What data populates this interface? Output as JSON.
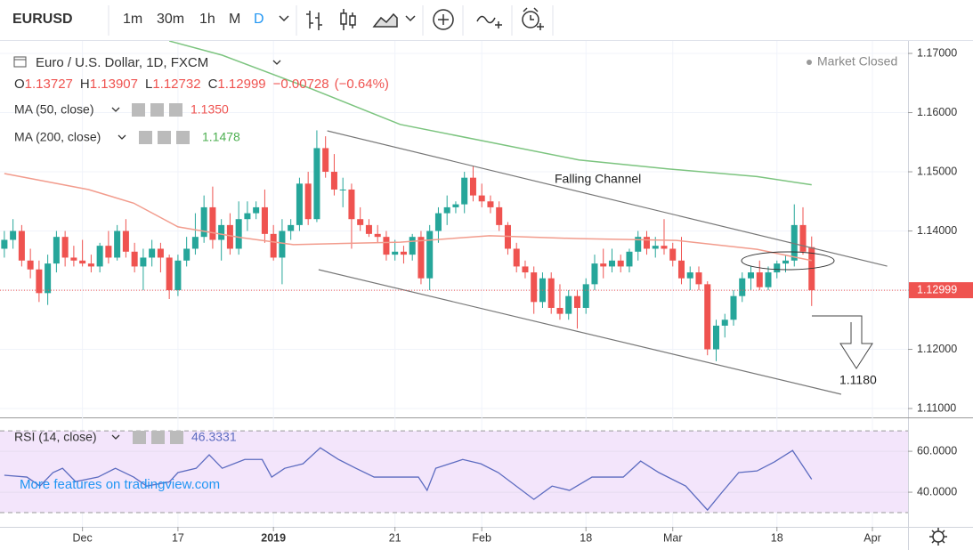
{
  "header": {
    "symbol": "EURUSD",
    "intervals": [
      "1m",
      "30m",
      "1h",
      "M",
      "D"
    ]
  },
  "legend": {
    "title": "Euro / U.S. Dollar, 1D, FXCM",
    "status": "Market Closed",
    "ohlc_labels": [
      "O",
      "H",
      "L",
      "C"
    ],
    "change": "−0.00728",
    "change_pct": "(−0.64%)"
  },
  "watermark": "More features on tradingview.com",
  "chart_data": [
    {
      "type": "candlestick",
      "open": [
        1.137,
        1.1385,
        1.14,
        1.135,
        1.1335,
        1.1295,
        1.1345,
        1.139,
        1.1355,
        1.135,
        1.1345,
        1.134,
        1.1375,
        1.1355,
        1.14,
        1.1365,
        1.134,
        1.1355,
        1.137,
        1.1355,
        1.13,
        1.135,
        1.137,
        1.139,
        1.144,
        1.1385,
        1.141,
        1.137,
        1.142,
        1.143,
        1.144,
        1.1395,
        1.1355,
        1.14,
        1.141,
        1.148,
        1.142,
        1.154,
        1.15,
        1.147,
        1.147,
        1.142,
        1.141,
        1.1395,
        1.139,
        1.136,
        1.1365,
        1.136,
        1.139,
        1.132,
        1.14,
        1.143,
        1.144,
        1.1445,
        1.149,
        1.146,
        1.145,
        1.144,
        1.141,
        1.137,
        1.134,
        1.133,
        1.128,
        1.132,
        1.127,
        1.126,
        1.129,
        1.127,
        1.131,
        1.1345,
        1.134,
        1.135,
        1.134,
        1.1365,
        1.139,
        1.137,
        1.1375,
        1.137,
        1.135,
        1.132,
        1.133,
        1.131,
        1.12,
        1.124,
        1.125,
        1.129,
        1.132,
        1.133,
        1.1305,
        1.133,
        1.1345,
        1.135,
        1.141,
        1.13727
      ],
      "high": [
        1.14,
        1.142,
        1.141,
        1.137,
        1.135,
        1.136,
        1.14,
        1.14,
        1.1375,
        1.1385,
        1.136,
        1.138,
        1.14,
        1.141,
        1.142,
        1.138,
        1.137,
        1.1385,
        1.138,
        1.136,
        1.136,
        1.139,
        1.143,
        1.146,
        1.1475,
        1.142,
        1.143,
        1.145,
        1.145,
        1.145,
        1.147,
        1.141,
        1.142,
        1.142,
        1.149,
        1.15,
        1.157,
        1.156,
        1.153,
        1.149,
        1.148,
        1.144,
        1.142,
        1.141,
        1.14,
        1.1385,
        1.1375,
        1.1395,
        1.14,
        1.141,
        1.144,
        1.146,
        1.145,
        1.15,
        1.151,
        1.148,
        1.146,
        1.145,
        1.1415,
        1.138,
        1.135,
        1.134,
        1.133,
        1.133,
        1.131,
        1.13,
        1.13,
        1.132,
        1.136,
        1.137,
        1.137,
        1.136,
        1.137,
        1.14,
        1.14,
        1.139,
        1.142,
        1.138,
        1.139,
        1.134,
        1.134,
        1.1315,
        1.125,
        1.126,
        1.13,
        1.133,
        1.134,
        1.135,
        1.134,
        1.135,
        1.136,
        1.1445,
        1.144,
        1.13907
      ],
      "low": [
        1.1355,
        1.137,
        1.134,
        1.132,
        1.128,
        1.1275,
        1.133,
        1.134,
        1.134,
        1.134,
        1.133,
        1.133,
        1.1345,
        1.135,
        1.1355,
        1.133,
        1.13,
        1.134,
        1.133,
        1.1285,
        1.129,
        1.134,
        1.136,
        1.138,
        1.137,
        1.135,
        1.136,
        1.136,
        1.14,
        1.142,
        1.138,
        1.135,
        1.131,
        1.1385,
        1.14,
        1.141,
        1.1415,
        1.149,
        1.146,
        1.144,
        1.137,
        1.14,
        1.139,
        1.138,
        1.135,
        1.135,
        1.1345,
        1.135,
        1.131,
        1.13,
        1.138,
        1.141,
        1.143,
        1.143,
        1.145,
        1.144,
        1.143,
        1.14,
        1.136,
        1.133,
        1.132,
        1.126,
        1.127,
        1.126,
        1.125,
        1.125,
        1.1235,
        1.126,
        1.13,
        1.132,
        1.133,
        1.133,
        1.133,
        1.135,
        1.136,
        1.1355,
        1.136,
        1.134,
        1.131,
        1.13,
        1.13,
        1.119,
        1.118,
        1.122,
        1.124,
        1.128,
        1.13,
        1.13,
        1.13,
        1.132,
        1.133,
        1.134,
        1.136,
        1.12732
      ],
      "close": [
        1.1385,
        1.14,
        1.135,
        1.1335,
        1.1295,
        1.1345,
        1.139,
        1.1355,
        1.135,
        1.1345,
        1.134,
        1.1375,
        1.1355,
        1.14,
        1.1365,
        1.134,
        1.1355,
        1.137,
        1.1355,
        1.13,
        1.135,
        1.137,
        1.139,
        1.144,
        1.1385,
        1.141,
        1.137,
        1.142,
        1.143,
        1.144,
        1.1395,
        1.1355,
        1.14,
        1.141,
        1.148,
        1.142,
        1.154,
        1.15,
        1.147,
        1.147,
        1.142,
        1.141,
        1.1395,
        1.139,
        1.136,
        1.1365,
        1.136,
        1.139,
        1.132,
        1.14,
        1.143,
        1.144,
        1.1445,
        1.149,
        1.146,
        1.145,
        1.144,
        1.141,
        1.137,
        1.134,
        1.133,
        1.128,
        1.132,
        1.127,
        1.126,
        1.129,
        1.127,
        1.131,
        1.1345,
        1.134,
        1.135,
        1.134,
        1.1365,
        1.139,
        1.137,
        1.1375,
        1.137,
        1.135,
        1.132,
        1.133,
        1.131,
        1.12,
        1.124,
        1.125,
        1.129,
        1.132,
        1.133,
        1.1305,
        1.133,
        1.1345,
        1.135,
        1.141,
        1.1365,
        1.12999
      ],
      "colors": {
        "up": "#26a69a",
        "down": "#ef5350"
      },
      "xlim": [
        -0.5,
        104.1
      ],
      "xticks": [
        {
          "value": 9,
          "label": "Dec"
        },
        {
          "value": 20,
          "label": "17"
        },
        {
          "value": 31,
          "label": "2019"
        },
        {
          "value": 45,
          "label": "21"
        },
        {
          "value": 55,
          "label": "Feb"
        },
        {
          "value": 67,
          "label": "18"
        },
        {
          "value": 77,
          "label": "Mar"
        },
        {
          "value": 89,
          "label": "18"
        },
        {
          "value": 100,
          "label": "Apr"
        }
      ],
      "ylim": [
        1.10865,
        1.17211
      ],
      "yticks": [
        {
          "value": 1.17,
          "label": "1.17000"
        },
        {
          "value": 1.16,
          "label": "1.16000"
        },
        {
          "value": 1.15,
          "label": "1.15000"
        },
        {
          "value": 1.14,
          "label": "1.14000"
        },
        {
          "value": 1.13,
          "label": "1.13000"
        },
        {
          "value": 1.12,
          "label": "1.12000"
        },
        {
          "value": 1.11,
          "label": "1.11000"
        }
      ],
      "grid": true,
      "series": [
        {
          "name": "MA (50, close)",
          "color": "#f29c8d",
          "last_label": "1.1350",
          "x": [
            0,
            9.7,
            14.9,
            20,
            27.2,
            33.3,
            45.6,
            55.9,
            66.2,
            77.4,
            86.7,
            93
          ],
          "values": [
            1.1497,
            1.147,
            1.1447,
            1.1407,
            1.1389,
            1.1377,
            1.1381,
            1.1392,
            1.1387,
            1.1384,
            1.1369,
            1.135
          ]
        },
        {
          "name": "MA (200, close)",
          "color": "#7cc47f",
          "last_label": "1.1478",
          "x": [
            19,
            25.1,
            35.4,
            45.6,
            55.9,
            66.2,
            76.4,
            86.7,
            93
          ],
          "values": [
            1.1721,
            1.1697,
            1.164,
            1.158,
            1.155,
            1.152,
            1.1505,
            1.1492,
            1.1478
          ]
        }
      ],
      "trend_lines": [
        {
          "x": [
            37.2,
            101.7
          ],
          "values": [
            1.15692,
            1.13406
          ]
        },
        {
          "x": [
            36.2,
            96.4
          ],
          "values": [
            1.13346,
            1.11241
          ]
        }
      ],
      "annotations": [
        "Falling Channel",
        "1.1180"
      ]
    },
    {
      "type": "line",
      "name": "RSI (14, close)",
      "color": "#5c6bc0",
      "x": [
        0,
        2.6,
        4.1,
        5.6,
        6.7,
        8.2,
        10.8,
        12.8,
        14.9,
        16.4,
        19,
        20,
        22.1,
        23.6,
        25.1,
        27.7,
        29.7,
        30.8,
        32.3,
        34.4,
        36.4,
        38.5,
        40.5,
        42.6,
        44.6,
        47.7,
        48.7,
        49.7,
        52.8,
        54.9,
        56.9,
        61,
        63.1,
        65.1,
        67.7,
        71.3,
        73.3,
        75.4,
        78.5,
        81,
        82.6,
        84.6,
        86.7,
        88.7,
        90.8,
        93
      ],
      "values": [
        48.3,
        47.4,
        43,
        49.6,
        51.7,
        45.2,
        47.4,
        51.7,
        47.4,
        43,
        45,
        49.6,
        51.7,
        58.3,
        51.7,
        56,
        56,
        47.4,
        51.7,
        53.9,
        61.7,
        56,
        51.7,
        47.4,
        47.4,
        47.4,
        40.9,
        51.7,
        56,
        53.9,
        49.6,
        36.5,
        43,
        40.9,
        47.4,
        47.4,
        55.2,
        49.6,
        43,
        31.3,
        39.6,
        49.6,
        50.4,
        54.8,
        60.4,
        46.3331
      ],
      "xlim": [
        -0.5,
        104.1
      ],
      "ylim": [
        23.5,
        75.7
      ],
      "yticks": [
        {
          "value": 60,
          "label": "60.0000"
        },
        {
          "value": 40,
          "label": "40.0000"
        }
      ],
      "bands": [
        70,
        30
      ],
      "band_color": "#f3e5fb",
      "grid": true
    }
  ]
}
